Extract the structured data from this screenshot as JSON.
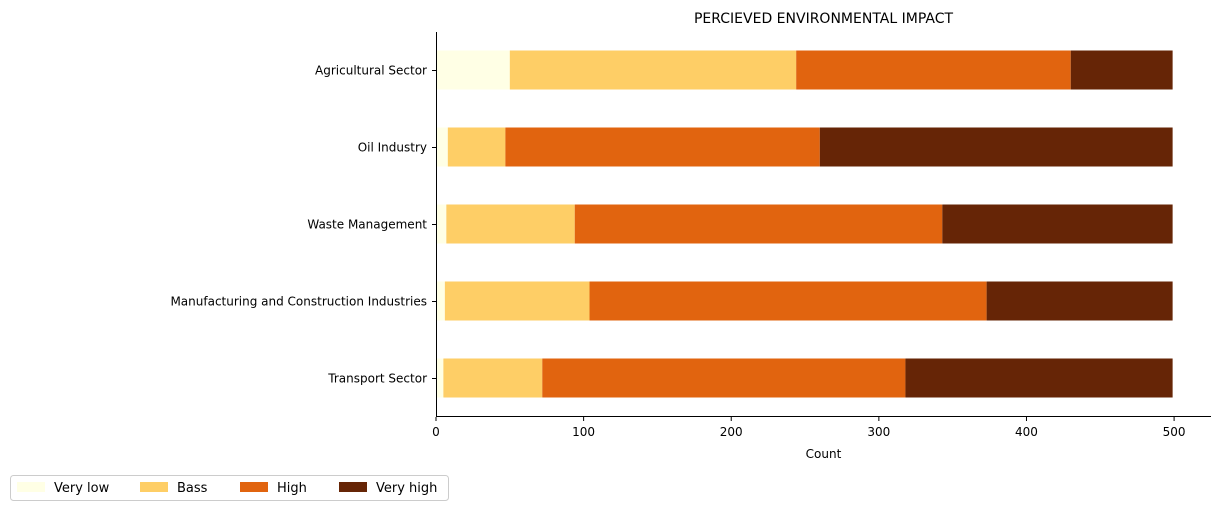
{
  "chart_data": {
    "type": "bar",
    "orientation": "horizontal",
    "stacked": true,
    "title": "PERCIEVED ENVIRONMENTAL IMPACT",
    "xlabel": "Count",
    "ylabel": "",
    "xlim": [
      0,
      525
    ],
    "xticks": [
      0,
      100,
      200,
      300,
      400,
      500
    ],
    "grid": false,
    "legend_position": "bottom-left",
    "categories": [
      "Agricultural Sector",
      "Oil Industry",
      "Waste Management",
      "Manufacturing and Construction Industries",
      "Transport Sector"
    ],
    "series": [
      {
        "name": "Very low",
        "color": "#ffffe5",
        "values": [
          50,
          8,
          7,
          6,
          5
        ]
      },
      {
        "name": "Bass",
        "color": "#fece66",
        "values": [
          194,
          39,
          87,
          98,
          67
        ]
      },
      {
        "name": "High",
        "color": "#e1640f",
        "values": [
          186,
          213,
          249,
          269,
          246
        ]
      },
      {
        "name": "Very high",
        "color": "#662506",
        "values": [
          69,
          239,
          156,
          126,
          181
        ]
      }
    ]
  }
}
